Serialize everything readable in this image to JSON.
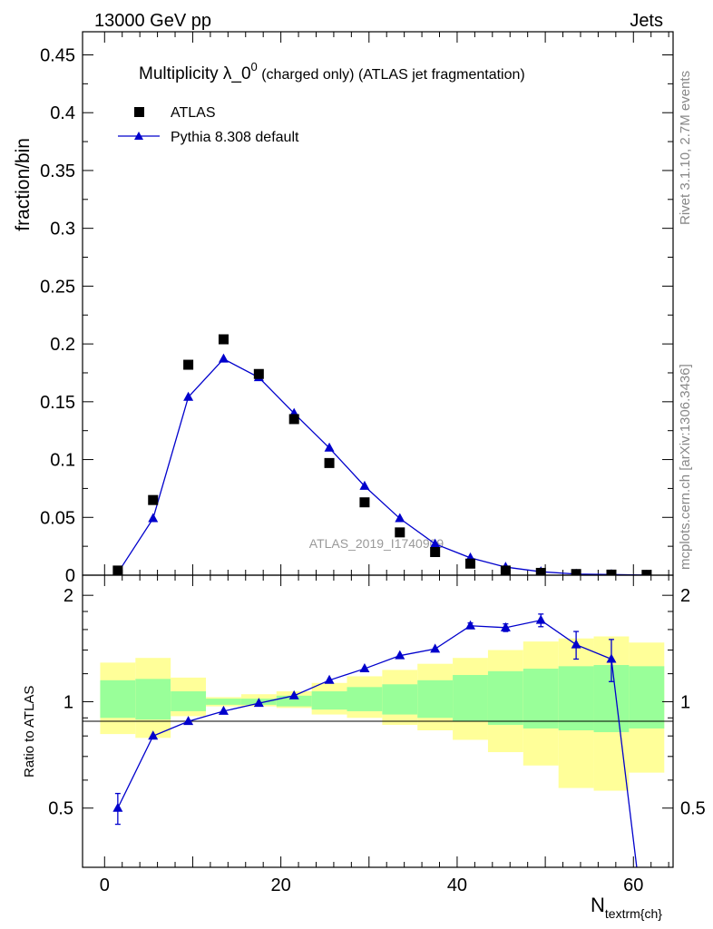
{
  "header": {
    "left": "13000 GeV pp",
    "right": "Jets"
  },
  "side_text": {
    "rivet": "Rivet 3.1.10,  2.7M events",
    "mcplots": "mcplots.cern.ch [arXiv:1306.3436]"
  },
  "chart_data": [
    {
      "type": "scatter",
      "panel": "main",
      "title_main": "Multiplicity λ_0",
      "title_sup": "0",
      "title_rest": " (charged only) (ATLAS jet fragmentation)",
      "ylabel": "fraction/bin",
      "xlim": [
        -2.5,
        64.5
      ],
      "ylim": [
        0,
        0.47
      ],
      "yticks": [
        0,
        0.05,
        0.1,
        0.15,
        0.2,
        0.25,
        0.3,
        0.35,
        0.4,
        0.45
      ],
      "ytick_labels": [
        "0",
        "0.05",
        "0.1",
        "0.15",
        "0.2",
        "0.25",
        "0.3",
        "0.35",
        "0.4",
        "0.45"
      ],
      "watermark": "ATLAS_2019_I1740909",
      "legend_position": "top-left",
      "series": [
        {
          "name": "ATLAS",
          "marker": "square",
          "color": "#000000",
          "x": [
            1.5,
            5.5,
            9.5,
            13.5,
            17.5,
            21.5,
            25.5,
            29.5,
            33.5,
            37.5,
            41.5,
            45.5,
            49.5,
            53.5,
            57.5,
            61.5
          ],
          "y": [
            0.004,
            0.065,
            0.182,
            0.204,
            0.174,
            0.135,
            0.097,
            0.063,
            0.037,
            0.02,
            0.01,
            0.004,
            0.002,
            0.001,
            0.0005,
            0.0003
          ]
        },
        {
          "name": "Pythia 8.308 default",
          "marker": "triangle",
          "color": "#0000cc",
          "x": [
            1.5,
            5.5,
            9.5,
            13.5,
            17.5,
            21.5,
            25.5,
            29.5,
            33.5,
            37.5,
            41.5,
            45.5,
            49.5,
            53.5,
            57.5,
            61.5
          ],
          "y": [
            0.002,
            0.049,
            0.154,
            0.187,
            0.171,
            0.14,
            0.11,
            0.077,
            0.049,
            0.027,
            0.015,
            0.007,
            0.003,
            0.001,
            0.0006,
            0.0001
          ]
        }
      ]
    },
    {
      "type": "line",
      "panel": "ratio",
      "ylabel": "Ratio to ATLAS",
      "xlabel_main": "N",
      "xlabel_sub": "textrm{ch}",
      "xlim": [
        -2.5,
        64.5
      ],
      "ylim": [
        0.34,
        2.28
      ],
      "yticks": [
        0.5,
        1,
        2
      ],
      "ytick_labels": [
        "0.5",
        "1",
        "2"
      ],
      "xticks": [
        0,
        20,
        40,
        60
      ],
      "xtick_labels": [
        "0",
        "20",
        "40",
        "60"
      ],
      "bins": [
        [
          -0.5,
          3.5
        ],
        [
          3.5,
          7.5
        ],
        [
          7.5,
          11.5
        ],
        [
          11.5,
          15.5
        ],
        [
          15.5,
          19.5
        ],
        [
          19.5,
          23.5
        ],
        [
          23.5,
          27.5
        ],
        [
          27.5,
          31.5
        ],
        [
          31.5,
          35.5
        ],
        [
          35.5,
          39.5
        ],
        [
          39.5,
          43.5
        ],
        [
          43.5,
          47.5
        ],
        [
          47.5,
          51.5
        ],
        [
          51.5,
          55.5
        ],
        [
          55.5,
          59.5
        ],
        [
          59.5,
          63.5
        ]
      ],
      "band_stat_color": "#99ff99",
      "band_total_color": "#ffff99",
      "band_stat": [
        [
          0.9,
          1.15
        ],
        [
          0.89,
          1.16
        ],
        [
          0.94,
          1.07
        ],
        [
          0.98,
          1.02
        ],
        [
          0.98,
          1.02
        ],
        [
          0.97,
          1.04
        ],
        [
          0.95,
          1.07
        ],
        [
          0.94,
          1.1
        ],
        [
          0.92,
          1.12
        ],
        [
          0.9,
          1.15
        ],
        [
          0.88,
          1.19
        ],
        [
          0.86,
          1.22
        ],
        [
          0.84,
          1.24
        ],
        [
          0.83,
          1.26
        ],
        [
          0.82,
          1.27
        ],
        [
          0.84,
          1.26
        ]
      ],
      "band_total": [
        [
          0.81,
          1.29
        ],
        [
          0.79,
          1.33
        ],
        [
          0.91,
          1.17
        ],
        [
          0.97,
          1.03
        ],
        [
          0.97,
          1.05
        ],
        [
          0.96,
          1.07
        ],
        [
          0.92,
          1.13
        ],
        [
          0.9,
          1.18
        ],
        [
          0.86,
          1.23
        ],
        [
          0.83,
          1.28
        ],
        [
          0.78,
          1.33
        ],
        [
          0.72,
          1.4
        ],
        [
          0.66,
          1.48
        ],
        [
          0.57,
          1.51
        ],
        [
          0.56,
          1.53
        ],
        [
          0.63,
          1.47
        ]
      ],
      "reference_line": 1,
      "series": [
        {
          "name": "Pythia 8.308 default",
          "color": "#0000cc",
          "x": [
            1.5,
            5.5,
            9.5,
            13.5,
            17.5,
            21.5,
            25.5,
            29.5,
            33.5,
            37.5,
            41.5,
            45.5,
            49.5,
            53.5,
            57.5
          ],
          "y": [
            0.5,
            0.8,
            0.88,
            0.94,
            0.99,
            1.04,
            1.15,
            1.24,
            1.35,
            1.41,
            1.64,
            1.62,
            1.7,
            1.45,
            1.32
          ],
          "yerr_low": [
            0.05,
            0,
            0,
            0,
            0,
            0,
            0,
            0,
            0,
            0,
            0.03,
            0.04,
            0.07,
            0.13,
            0.18
          ],
          "yerr_high": [
            0.05,
            0,
            0,
            0,
            0,
            0,
            0,
            0,
            0,
            0,
            0.03,
            0.04,
            0.07,
            0.13,
            0.18
          ],
          "tail_x": 61.5,
          "tail_y": 0.2
        }
      ]
    }
  ]
}
